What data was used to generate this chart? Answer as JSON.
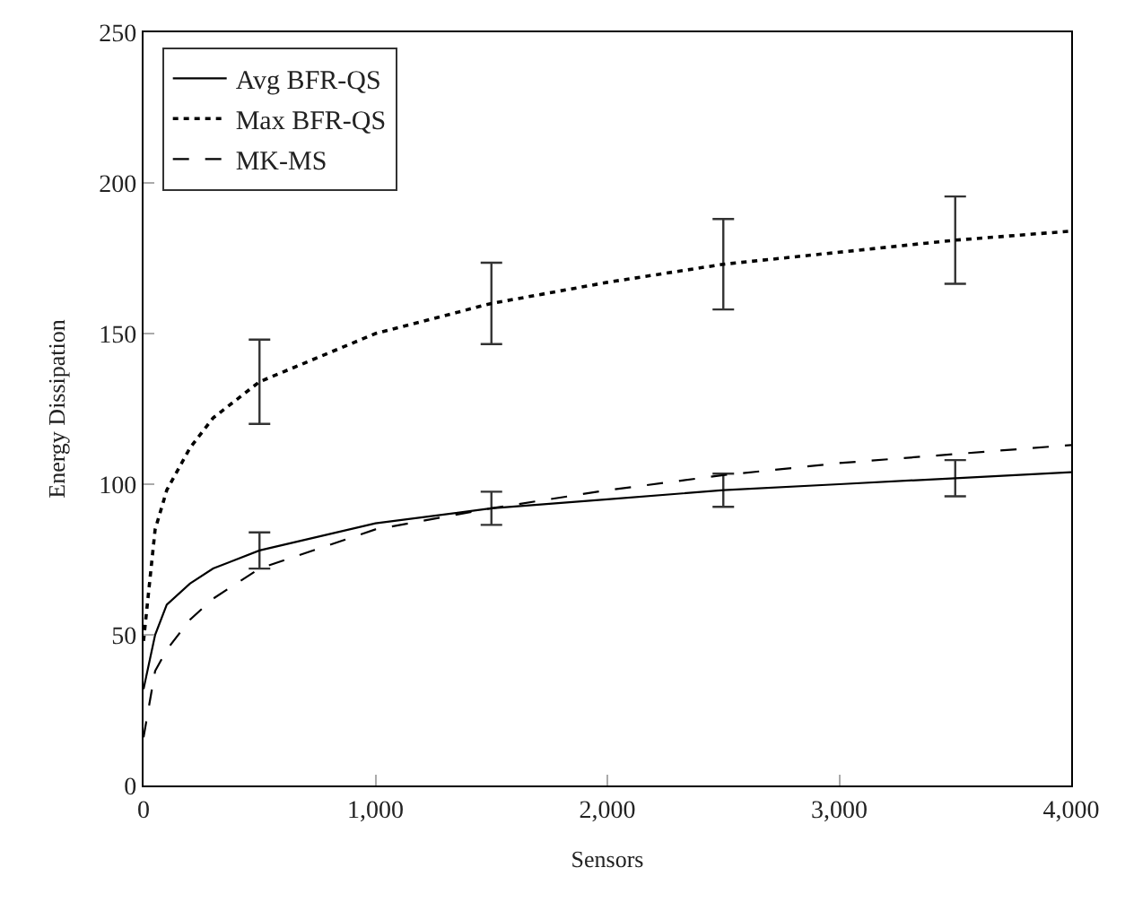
{
  "chart_data": {
    "type": "line",
    "xlabel": "Sensors",
    "ylabel": "Energy Dissipation",
    "x": [
      0,
      50,
      100,
      200,
      300,
      500,
      1000,
      1500,
      2000,
      2500,
      3000,
      3500,
      4000
    ],
    "series": [
      {
        "name": "Avg BFR-QS",
        "color": "#000000",
        "line_style": "solid",
        "values": [
          32,
          50,
          60,
          67,
          72,
          78,
          87,
          92,
          95,
          98,
          100,
          102,
          104
        ],
        "errors": [
          null,
          null,
          null,
          null,
          null,
          6,
          null,
          5.5,
          null,
          5.5,
          null,
          6,
          null
        ]
      },
      {
        "name": "Max BFR-QS",
        "color": "#000000",
        "line_style": "dotted",
        "values": [
          48,
          85,
          98,
          112,
          122,
          134,
          150,
          160,
          167,
          173,
          177,
          181,
          184
        ],
        "errors": [
          null,
          null,
          null,
          null,
          null,
          14,
          null,
          13.5,
          null,
          15,
          null,
          14.5,
          null
        ]
      },
      {
        "name": "MK-MS",
        "color": "#000000",
        "line_style": "dashed",
        "values": [
          16,
          38,
          45,
          55,
          62,
          72,
          85,
          92,
          98,
          103,
          107,
          110,
          113
        ]
      }
    ],
    "xlim": [
      0,
      4000
    ],
    "xticks": [
      0,
      {
        "value": 1000,
        "label": "1,000"
      },
      {
        "value": 2000,
        "label": "2,000"
      },
      {
        "value": 3000,
        "label": "3,000"
      },
      {
        "value": 4000,
        "label": "4,000"
      }
    ],
    "ylim": [
      0,
      250
    ],
    "yticks": [
      0,
      50,
      100,
      150,
      200,
      250
    ],
    "legend": "top left",
    "marker": "none"
  }
}
